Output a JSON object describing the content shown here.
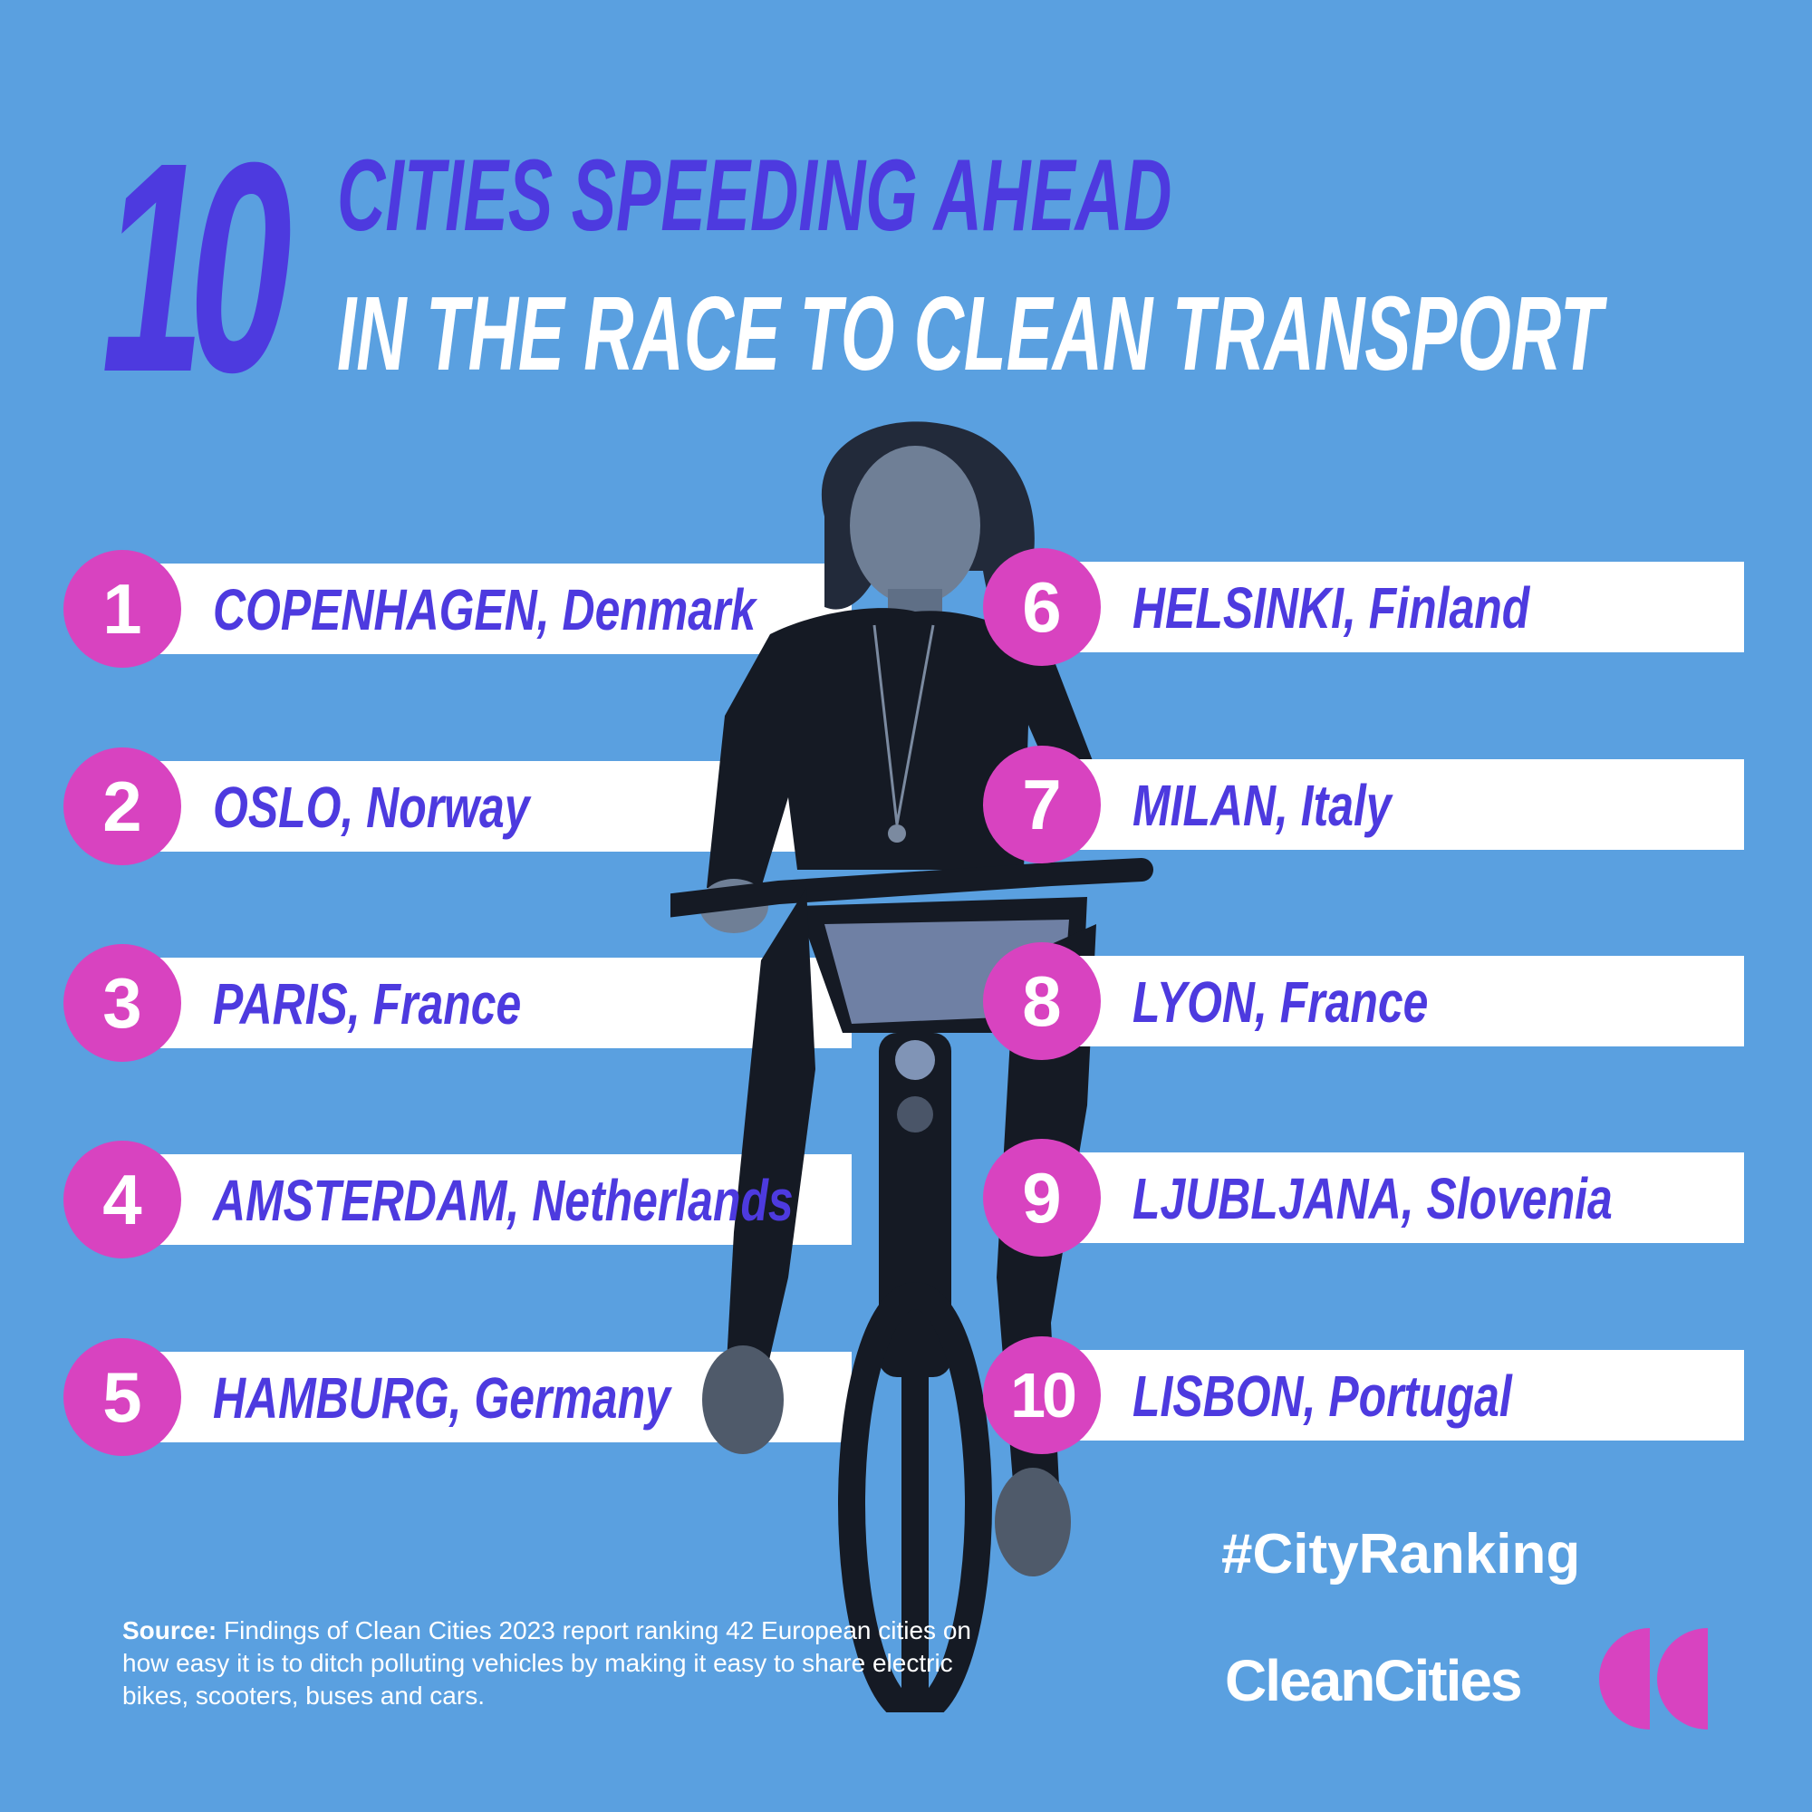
{
  "header": {
    "number": "10",
    "line1": "CITIES SPEEDING AHEAD",
    "line2": "IN THE RACE TO CLEAN TRANSPORT"
  },
  "ranking": [
    {
      "rank": "1",
      "city": "COPENHAGEN,",
      "country": "Denmark"
    },
    {
      "rank": "2",
      "city": "OSLO,",
      "country": "Norway"
    },
    {
      "rank": "3",
      "city": "PARIS,",
      "country": "France"
    },
    {
      "rank": "4",
      "city": "AMSTERDAM,",
      "country": "Netherlands"
    },
    {
      "rank": "5",
      "city": "HAMBURG,",
      "country": "Germany"
    },
    {
      "rank": "6",
      "city": "HELSINKI,",
      "country": "Finland"
    },
    {
      "rank": "7",
      "city": "MILAN,",
      "country": "Italy"
    },
    {
      "rank": "8",
      "city": "LYON,",
      "country": "France"
    },
    {
      "rank": "9",
      "city": "LJUBLJANA,",
      "country": "Slovenia"
    },
    {
      "rank": "10",
      "city": "LISBON,",
      "country": "Portugal"
    }
  ],
  "hashtag": "#CityRanking",
  "brand": "CleanCities",
  "source": {
    "label": "Source:",
    "text": "Findings of Clean Cities 2023 report ranking 42 European cities on how easy it is to ditch polluting vehicles by making it easy to share electric bikes, scooters, buses and cars."
  },
  "colors": {
    "background": "#5aa0e0",
    "accent_purple": "#4d3adf",
    "badge_pink": "#d843c0",
    "bar_white": "#ffffff"
  }
}
